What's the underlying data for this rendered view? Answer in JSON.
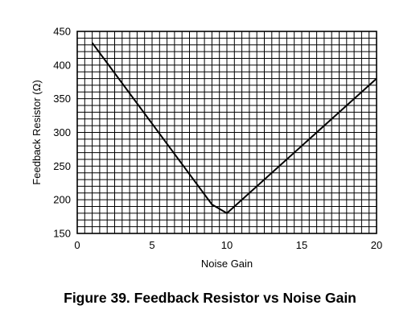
{
  "caption": "Figure 39.  Feedback Resistor vs Noise Gain",
  "chart_data": {
    "type": "line",
    "title": "",
    "xlabel": "Noise Gain",
    "ylabel": "Feedback Resistor (Ω)",
    "xlim": [
      0,
      20
    ],
    "ylim": [
      150,
      450
    ],
    "x_ticks": [
      0,
      5,
      10,
      15,
      20
    ],
    "y_ticks": [
      150,
      200,
      250,
      300,
      350,
      400,
      450
    ],
    "x_tick_labels": [
      "0",
      "5",
      "10",
      "15",
      "20"
    ],
    "y_tick_labels": [
      "150",
      "200",
      "250",
      "300",
      "350",
      "400",
      "450"
    ],
    "grid": true,
    "x_minor_step": 0.5,
    "y_minor_step": 10,
    "series": [
      {
        "x": [
          1,
          9,
          10,
          20
        ],
        "y": [
          433,
          193,
          180,
          380
        ]
      }
    ]
  }
}
